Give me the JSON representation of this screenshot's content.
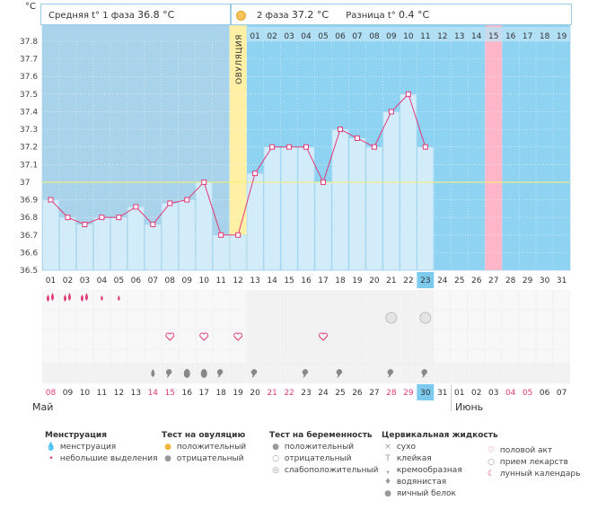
{
  "units_label": "°C",
  "header": {
    "phase1_label": "Средняя t° 1 фаза",
    "phase1_value": "36.8 °C",
    "phase2_label": "2 фаза",
    "phase2_value": "37.2 °C",
    "diff_label": "Разница t°",
    "diff_value": "0.4 °C"
  },
  "ovulation_label": "ОВУЛЯЦИЯ",
  "colors": {
    "pre_ovulation_bg": "#a9d3ea",
    "post_ovulation_bg": "#8fd3f3",
    "ovulation_col": "#fff0a6",
    "menstruation_col": "#ffb6c8",
    "bar_fill": "#d3ecfa",
    "line": "#e03a78",
    "coverline": "#f3f07a",
    "today_badge": "#7ccbef"
  },
  "chart_data": {
    "type": "line",
    "title": "",
    "xlabel": "",
    "ylabel": "°C",
    "ylim": [
      36.5,
      37.8
    ],
    "yticks": [
      "37.8",
      "37.7",
      "37.6",
      "37.5",
      "37.4",
      "37.3",
      "37.2",
      "37.1",
      "37",
      "36.9",
      "36.8",
      "36.7",
      "36.6",
      "36.5"
    ],
    "days": [
      "01",
      "02",
      "03",
      "04",
      "05",
      "06",
      "07",
      "08",
      "09",
      "10",
      "11",
      "12",
      "13",
      "14",
      "15",
      "16",
      "17",
      "18",
      "19",
      "20",
      "21",
      "22",
      "23",
      "24",
      "25",
      "26",
      "27",
      "28",
      "29",
      "30",
      "31"
    ],
    "temperatures": [
      36.9,
      36.8,
      36.76,
      36.8,
      36.8,
      36.86,
      36.76,
      36.88,
      36.9,
      37.0,
      36.7,
      36.7,
      37.05,
      37.2,
      37.2,
      37.2,
      37.0,
      37.3,
      37.25,
      37.2,
      37.4,
      37.5,
      37.2,
      null,
      null,
      null,
      null,
      null,
      null,
      null,
      null
    ],
    "coverline": 37.0,
    "ovulation_day": "12",
    "current_day": "23",
    "top_phase2_days": [
      "01",
      "02",
      "03",
      "04",
      "05",
      "06",
      "07",
      "08",
      "09",
      "10",
      "11",
      "12",
      "13",
      "14",
      "15",
      "16",
      "17",
      "18",
      "19"
    ],
    "top_menstruation_day": "15",
    "dates": [
      "08",
      "09",
      "10",
      "11",
      "12",
      "13",
      "14",
      "15",
      "16",
      "17",
      "18",
      "19",
      "20",
      "21",
      "22",
      "23",
      "24",
      "25",
      "26",
      "27",
      "28",
      "29",
      "30",
      "31",
      "01",
      "02",
      "03",
      "04",
      "05",
      "06",
      "07"
    ],
    "weekend_dates": [
      "08",
      "14",
      "15",
      "21",
      "22",
      "28",
      "29",
      "04",
      "05"
    ],
    "current_date": "30",
    "month_may": "Май",
    "month_june": "Июнь",
    "menstruation_marks": {
      "01": "heavy",
      "02": "heavy",
      "03": "heavy",
      "04": "light",
      "05": "light"
    },
    "pregnancy_marks": [
      "21",
      "23"
    ],
    "intercourse_marks": [
      "08",
      "10",
      "12",
      "17"
    ],
    "fluid_marks": {
      "07": "watery",
      "08": "creamy",
      "09": "eggwhite",
      "10": "eggwhite",
      "11": "creamy",
      "13": "creamy",
      "16": "creamy",
      "18": "creamy",
      "21": "creamy",
      "23": "creamy"
    }
  },
  "legend": {
    "groups": [
      {
        "title": "Менструация",
        "items": [
          {
            "icon": "drop-heavy-icon",
            "glyph": "💧",
            "label": "менструация"
          },
          {
            "icon": "drop-light-icon",
            "glyph": "•",
            "label": "небольшие выделения"
          }
        ]
      },
      {
        "title": "Тест на овуляцию",
        "items": [
          {
            "icon": "ovulation-positive-icon",
            "glyph": "●",
            "label": "положительный"
          },
          {
            "icon": "ovulation-negative-icon",
            "glyph": "●",
            "label": "отрицательный"
          }
        ]
      },
      {
        "title": "Тест на беременность",
        "items": [
          {
            "icon": "pregnancy-positive-icon",
            "glyph": "●",
            "label": "положительный"
          },
          {
            "icon": "pregnancy-negative-icon",
            "glyph": "○",
            "label": "отрицательный"
          },
          {
            "icon": "pregnancy-weak-icon",
            "glyph": "◎",
            "label": "слабоположительный"
          }
        ]
      },
      {
        "title": "Цервикальная жидкость",
        "items": [
          {
            "icon": "dry-icon",
            "glyph": "×",
            "label": "сухо"
          },
          {
            "icon": "sticky-icon",
            "glyph": "T",
            "label": "клейкая"
          },
          {
            "icon": "creamy-icon",
            "glyph": "❟",
            "label": "кремообразная"
          },
          {
            "icon": "watery-icon",
            "glyph": "♦",
            "label": "водянистая"
          },
          {
            "icon": "eggwhite-icon",
            "glyph": "●",
            "label": "яичный белок"
          }
        ]
      },
      {
        "title": "",
        "items": [
          {
            "icon": "heart-icon",
            "glyph": "♡",
            "label": "половой акт"
          },
          {
            "icon": "medication-icon",
            "glyph": "○",
            "label": "прием лекарств"
          },
          {
            "icon": "moon-icon",
            "glyph": "☾",
            "label": "лунный календарь"
          }
        ]
      }
    ]
  }
}
